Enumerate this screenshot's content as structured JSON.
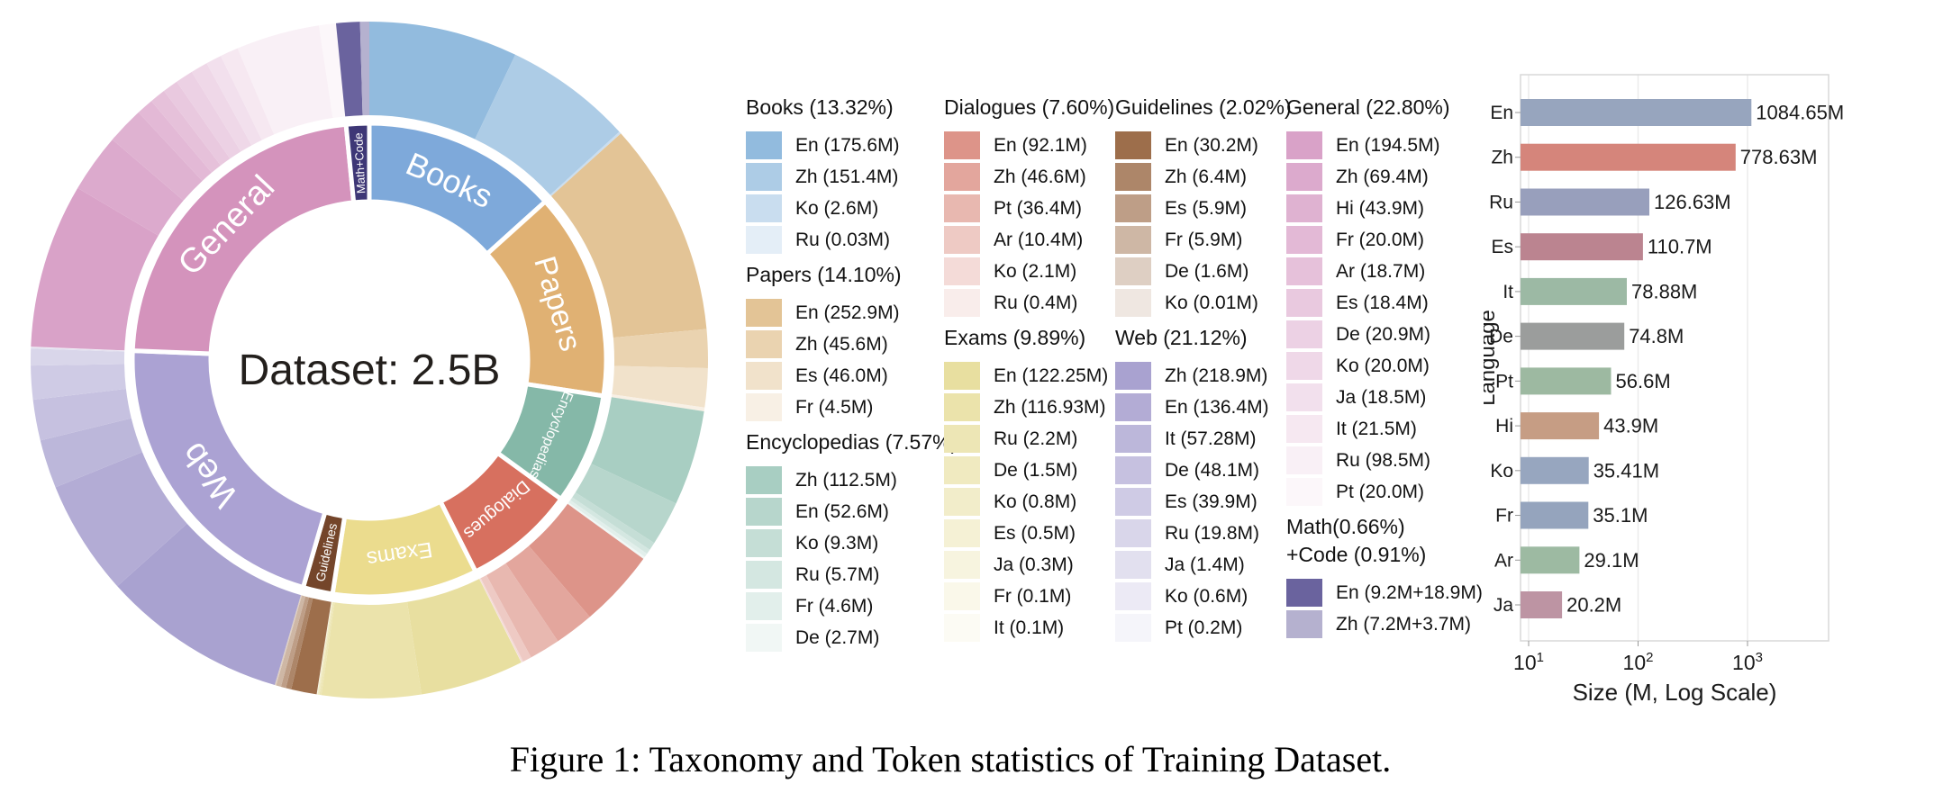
{
  "figure_caption": "Figure 1: Taxonomy and Token statistics of Training Dataset.",
  "donut_center_label": "Dataset: 2.5B",
  "chart_data": [
    {
      "type": "sunburst",
      "center_label": "Dataset: 2.5B",
      "unit": "M tokens",
      "categories": [
        {
          "name": "Books",
          "header": "Books (13.32%)",
          "percent": 13.32,
          "color": "#7ea9da",
          "shade_base": "#92bbde",
          "languages": [
            {
              "code": "En",
              "label": "En (175.6M)",
              "size_m": 175.6
            },
            {
              "code": "Zh",
              "label": "Zh (151.4M)",
              "size_m": 151.4
            },
            {
              "code": "Ko",
              "label": "Ko (2.6M)",
              "size_m": 2.6
            },
            {
              "code": "Ru",
              "label": "Ru (0.03M)",
              "size_m": 0.03
            }
          ]
        },
        {
          "name": "Papers",
          "header": "Papers (14.10%)",
          "percent": 14.1,
          "color": "#e0b173",
          "shade_base": "#e3c496",
          "languages": [
            {
              "code": "En",
              "label": "En (252.9M)",
              "size_m": 252.9
            },
            {
              "code": "Zh",
              "label": "Zh (45.6M)",
              "size_m": 45.6
            },
            {
              "code": "Es",
              "label": "Es (46.0M)",
              "size_m": 46.0
            },
            {
              "code": "Fr",
              "label": "Fr (4.5M)",
              "size_m": 4.5
            }
          ]
        },
        {
          "name": "Encyclopedias",
          "header": "Encyclopedias (7.57%)",
          "percent": 7.57,
          "color": "#85b8a8",
          "shade_base": "#a8cec2",
          "languages": [
            {
              "code": "Zh",
              "label": "Zh (112.5M)",
              "size_m": 112.5
            },
            {
              "code": "En",
              "label": "En (52.6M)",
              "size_m": 52.6
            },
            {
              "code": "Ko",
              "label": "Ko (9.3M)",
              "size_m": 9.3
            },
            {
              "code": "Ru",
              "label": "Ru (5.7M)",
              "size_m": 5.7
            },
            {
              "code": "Fr",
              "label": "Fr (4.6M)",
              "size_m": 4.6
            },
            {
              "code": "De",
              "label": "De (2.7M)",
              "size_m": 2.7
            }
          ]
        },
        {
          "name": "Dialogues",
          "header": "Dialogues (7.60%)",
          "percent": 7.6,
          "color": "#d7705f",
          "shade_base": "#dd9489",
          "languages": [
            {
              "code": "En",
              "label": "En (92.1M)",
              "size_m": 92.1
            },
            {
              "code": "Zh",
              "label": "Zh (46.6M)",
              "size_m": 46.6
            },
            {
              "code": "Pt",
              "label": "Pt (36.4M)",
              "size_m": 36.4
            },
            {
              "code": "Ar",
              "label": "Ar (10.4M)",
              "size_m": 10.4
            },
            {
              "code": "Ko",
              "label": "Ko (2.1M)",
              "size_m": 2.1
            },
            {
              "code": "Ru",
              "label": "Ru (0.4M)",
              "size_m": 0.4
            }
          ]
        },
        {
          "name": "Exams",
          "header": "Exams (9.89%)",
          "percent": 9.89,
          "color": "#ebdc8e",
          "shade_base": "#e8dfa0",
          "languages": [
            {
              "code": "En",
              "label": "En (122.25M)",
              "size_m": 122.25
            },
            {
              "code": "Zh",
              "label": "Zh (116.93M)",
              "size_m": 116.93
            },
            {
              "code": "Ru",
              "label": "Ru (2.2M)",
              "size_m": 2.2
            },
            {
              "code": "De",
              "label": "De (1.5M)",
              "size_m": 1.5
            },
            {
              "code": "Ko",
              "label": "Ko (0.8M)",
              "size_m": 0.8
            },
            {
              "code": "Es",
              "label": "Es (0.5M)",
              "size_m": 0.5
            },
            {
              "code": "Ja",
              "label": "Ja (0.3M)",
              "size_m": 0.3
            },
            {
              "code": "Fr",
              "label": "Fr (0.1M)",
              "size_m": 0.1
            },
            {
              "code": "It",
              "label": "It (0.1M)",
              "size_m": 0.1
            }
          ]
        },
        {
          "name": "Guidelines",
          "header": "Guidelines (2.02%)",
          "percent": 2.02,
          "color": "#74452a",
          "shade_base": "#9d6e4b",
          "languages": [
            {
              "code": "En",
              "label": "En (30.2M)",
              "size_m": 30.2
            },
            {
              "code": "Zh",
              "label": "Zh (6.4M)",
              "size_m": 6.4
            },
            {
              "code": "Es",
              "label": "Es (5.9M)",
              "size_m": 5.9
            },
            {
              "code": "Fr",
              "label": "Fr (5.9M)",
              "size_m": 5.9
            },
            {
              "code": "De",
              "label": "De (1.6M)",
              "size_m": 1.6
            },
            {
              "code": "Ko",
              "label": "Ko (0.01M)",
              "size_m": 0.01
            }
          ]
        },
        {
          "name": "Web",
          "header": "Web (21.12%)",
          "percent": 21.12,
          "color": "#aba2d3",
          "shade_base": "#a9a2d0",
          "languages": [
            {
              "code": "Zh",
              "label": "Zh (218.9M)",
              "size_m": 218.9
            },
            {
              "code": "En",
              "label": "En (136.4M)",
              "size_m": 136.4
            },
            {
              "code": "It",
              "label": "It (57.28M)",
              "size_m": 57.28
            },
            {
              "code": "De",
              "label": "De (48.1M)",
              "size_m": 48.1
            },
            {
              "code": "Es",
              "label": "Es (39.9M)",
              "size_m": 39.9
            },
            {
              "code": "Ru",
              "label": "Ru (19.8M)",
              "size_m": 19.8
            },
            {
              "code": "Ja",
              "label": "Ja (1.4M)",
              "size_m": 1.4
            },
            {
              "code": "Ko",
              "label": "Ko (0.6M)",
              "size_m": 0.6
            },
            {
              "code": "Pt",
              "label": "Pt (0.2M)",
              "size_m": 0.2
            }
          ]
        },
        {
          "name": "General",
          "header": "General (22.80%)",
          "percent": 22.8,
          "color": "#d493bc",
          "shade_base": "#d9a2c8",
          "languages": [
            {
              "code": "En",
              "label": "En (194.5M)",
              "size_m": 194.5
            },
            {
              "code": "Zh",
              "label": "Zh (69.4M)",
              "size_m": 69.4
            },
            {
              "code": "Hi",
              "label": "Hi (43.9M)",
              "size_m": 43.9
            },
            {
              "code": "Fr",
              "label": "Fr (20.0M)",
              "size_m": 20.0
            },
            {
              "code": "Ar",
              "label": "Ar (18.7M)",
              "size_m": 18.7
            },
            {
              "code": "Es",
              "label": "Es (18.4M)",
              "size_m": 18.4
            },
            {
              "code": "De",
              "label": "De (20.9M)",
              "size_m": 20.9
            },
            {
              "code": "Ko",
              "label": "Ko (20.0M)",
              "size_m": 20.0
            },
            {
              "code": "Ja",
              "label": "Ja (18.5M)",
              "size_m": 18.5
            },
            {
              "code": "It",
              "label": "It (21.5M)",
              "size_m": 21.5
            },
            {
              "code": "Ru",
              "label": "Ru (98.5M)",
              "size_m": 98.5
            },
            {
              "code": "Pt",
              "label": "Pt (20.0M)",
              "size_m": 20.0
            }
          ]
        },
        {
          "name": "Math+Code",
          "header": "Math(0.66%)",
          "header_lines": [
            "Math(0.66%)",
            "+Code (0.91%)"
          ],
          "percent": 1.57,
          "color": "#3e3776",
          "shade_base": "#6a639e",
          "languages": [
            {
              "code": "En",
              "label": "En (9.2M+18.9M)",
              "size_m": 28.1
            },
            {
              "code": "Zh",
              "label": "Zh (7.2M+3.7M)",
              "size_m": 10.9
            }
          ]
        }
      ]
    },
    {
      "type": "bar",
      "orientation": "horizontal",
      "xscale": "log",
      "xlabel": "Size (M, Log Scale)",
      "ylabel": "Language",
      "categories": [
        "En",
        "Zh",
        "Ru",
        "Es",
        "It",
        "De",
        "Pt",
        "Hi",
        "Ko",
        "Fr",
        "Ar",
        "Ja"
      ],
      "values": [
        1084.65,
        778.63,
        126.63,
        110.7,
        78.88,
        74.8,
        56.6,
        43.9,
        35.41,
        35.1,
        29.1,
        20.2
      ],
      "value_labels": [
        "1084.65M",
        "778.63M",
        "126.63M",
        "110.7M",
        "78.88M",
        "74.8M",
        "56.6M",
        "43.9M",
        "35.41M",
        "35.1M",
        "29.1M",
        "20.2M"
      ],
      "bar_colors": [
        "#97a5be",
        "#d5857b",
        "#989fbc",
        "#bb8490",
        "#9cb9a4",
        "#9b9d9c",
        "#9db9a1",
        "#c69d84",
        "#97a6bf",
        "#95a4bd",
        "#9dbaa2",
        "#bd94a3"
      ],
      "xtick_base": "10",
      "xtick_exponents": [
        1,
        2,
        3
      ],
      "xlim_log": [
        0.93,
        3.74
      ],
      "grid": true,
      "legend_position": "none"
    }
  ]
}
